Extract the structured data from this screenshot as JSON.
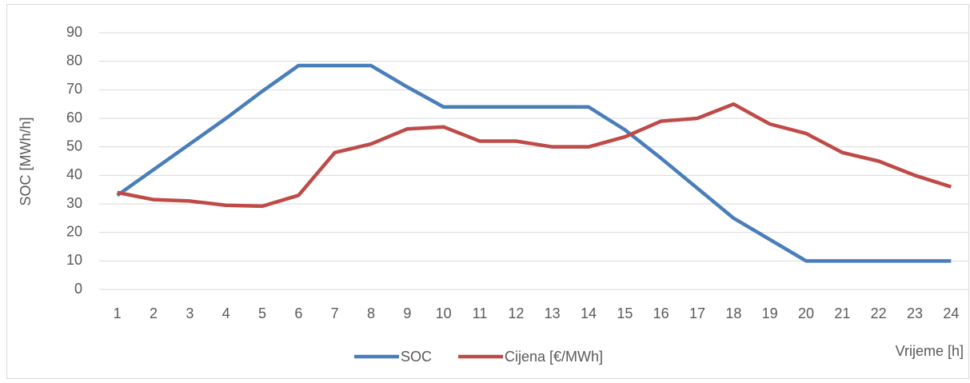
{
  "chart_data": {
    "type": "line",
    "y_label": "SOC [MWh/h]",
    "x_label": "Vrijeme [h]",
    "categories": [
      "1",
      "2",
      "3",
      "4",
      "5",
      "6",
      "7",
      "8",
      "9",
      "10",
      "11",
      "12",
      "13",
      "14",
      "15",
      "16",
      "17",
      "18",
      "19",
      "20",
      "21",
      "22",
      "23",
      "24"
    ],
    "series": [
      {
        "name": "SOC",
        "color": "#4a7ebb",
        "values": [
          33,
          42,
          51,
          60,
          69.5,
          78.5,
          78.5,
          78.5,
          71,
          64,
          64,
          64,
          64,
          64,
          56,
          46,
          35.5,
          25,
          17.5,
          10,
          10,
          10,
          10,
          10
        ]
      },
      {
        "name": "Cijena [€/MWh]",
        "color": "#be4b48",
        "values": [
          34,
          31.5,
          31,
          29.5,
          29.2,
          33,
          48,
          51,
          56.3,
          57,
          52,
          52,
          50,
          50,
          53.5,
          59,
          60,
          65,
          58,
          54.7,
          48,
          45,
          40,
          36
        ]
      }
    ],
    "ylim": [
      0,
      90
    ],
    "yticks": [
      0,
      10,
      20,
      30,
      40,
      50,
      60,
      70,
      80,
      90
    ],
    "grid": true,
    "legend": "bottom"
  }
}
